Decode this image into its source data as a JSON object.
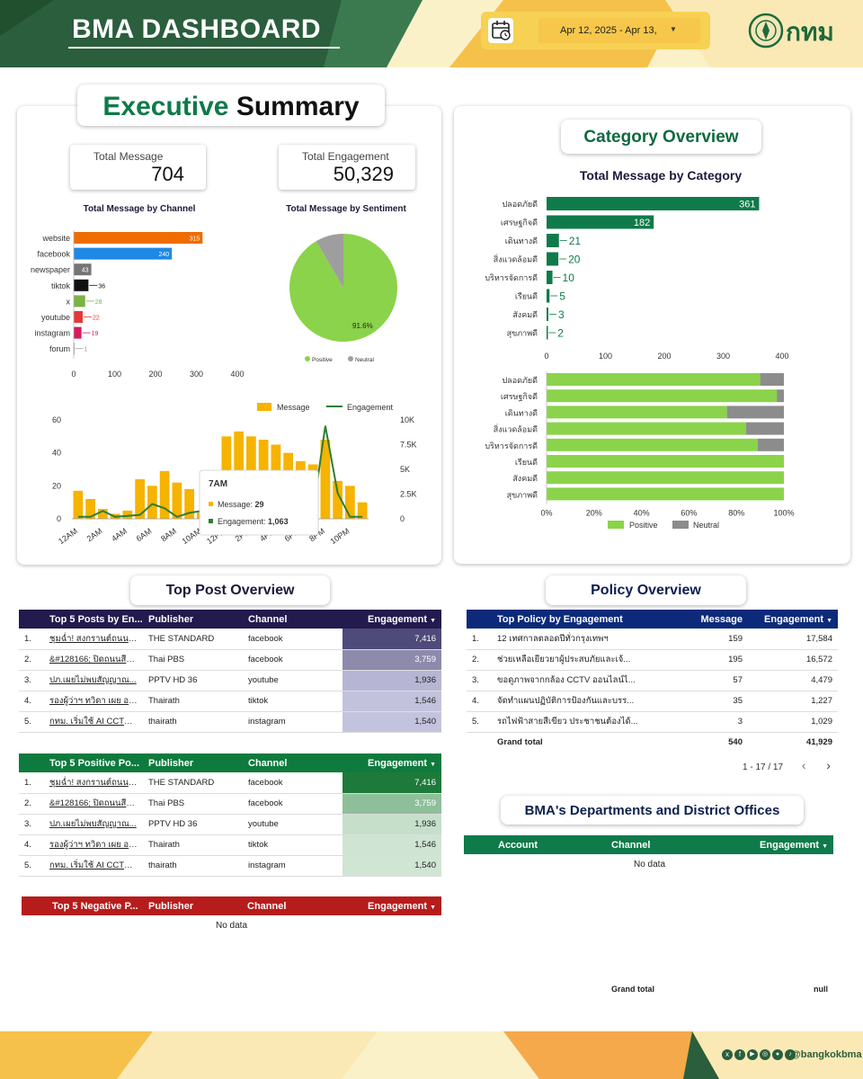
{
  "header": {
    "title": "BMA DASHBOARD",
    "date_range": "Apr 12, 2025 - Apr 13,",
    "logo_text": "กทม",
    "colors": {
      "dark_green": "#2a5e3c",
      "yellow": "#f7d154",
      "cream": "#fbf1c8",
      "orange": "#f6a94a"
    }
  },
  "executive": {
    "title_a": "Executive",
    "title_b": "Summary",
    "total_message_label": "Total Message",
    "total_message_value": "704",
    "total_engagement_label": "Total Engagement",
    "total_engagement_value": "50,329"
  },
  "channel_chart": {
    "title": "Total Message by Channel",
    "categories": [
      "website",
      "facebook",
      "newspaper",
      "tiktok",
      "x",
      "youtube",
      "instagram",
      "forum"
    ],
    "values": [
      315,
      240,
      43,
      36,
      28,
      22,
      19,
      1
    ],
    "value_labels": [
      "315",
      "240",
      "43",
      "36",
      "28",
      "22",
      "19",
      "1"
    ],
    "colors": [
      "#ef6c00",
      "#1e88e5",
      "#757575",
      "#111111",
      "#7cb342",
      "#e53935",
      "#d81b60",
      "#9e9e9e"
    ],
    "xticks": [
      "0",
      "100",
      "200",
      "300",
      "400"
    ],
    "xmax": 400
  },
  "sentiment_chart": {
    "title": "Total Message by Sentiment",
    "slices": [
      {
        "name": "Positive",
        "value": 91.6,
        "color": "#8bd34a"
      },
      {
        "name": "Neutral",
        "value": 8.4,
        "color": "#9e9e9e"
      }
    ],
    "label": "91.6%",
    "legend": [
      "Positive",
      "Neutral"
    ]
  },
  "hourly_chart": {
    "legend": [
      "Message",
      "Engagement"
    ],
    "x": [
      "12AM",
      "1AM",
      "2AM",
      "3AM",
      "4AM",
      "5AM",
      "6AM",
      "7AM",
      "8AM",
      "9AM",
      "10AM",
      "11AM",
      "12PM",
      "1PM",
      "2PM",
      "3PM",
      "4PM",
      "5PM",
      "6PM",
      "7PM",
      "8PM",
      "9PM",
      "10PM",
      "11PM"
    ],
    "xticks": [
      "12AM",
      "2AM",
      "4AM",
      "6AM",
      "8AM",
      "10AM",
      "12PM",
      "2PM",
      "4PM",
      "6PM",
      "8PM",
      "10PM"
    ],
    "messages": [
      17,
      12,
      6,
      3,
      5,
      24,
      20,
      29,
      22,
      18,
      4,
      0,
      50,
      53,
      50,
      48,
      45,
      40,
      35,
      33,
      48,
      23,
      20,
      10
    ],
    "engagement": [
      200,
      200,
      800,
      200,
      300,
      400,
      1500,
      1063,
      200,
      600,
      800,
      1200,
      400,
      2000,
      1500,
      1200,
      1400,
      3500,
      1000,
      700,
      9400,
      2600,
      200,
      200
    ],
    "y_left_ticks": [
      "0",
      "20",
      "40",
      "60"
    ],
    "y_right_ticks": [
      "0",
      "2.5K",
      "5K",
      "7.5K",
      "10K"
    ],
    "tooltip": {
      "title": "7AM",
      "message_label": "Message:",
      "message_value": "29",
      "engagement_label": "Engagement:",
      "engagement_value": "1,063"
    },
    "colors": {
      "bar": "#f6b300",
      "line": "#2e7d32"
    }
  },
  "category": {
    "title": "Category Overview",
    "chart_title": "Total Message by Category",
    "categories": [
      "ปลอดภัยดี",
      "เศรษฐกิจดี",
      "เดินทางดี",
      "สิ่งแวดล้อมดี",
      "บริหารจัดการดี",
      "เรียนดี",
      "สังคมดี",
      "สุขภาพดี"
    ],
    "values": [
      361,
      182,
      21,
      20,
      10,
      5,
      3,
      2
    ],
    "value_labels": [
      "361",
      "182",
      "21",
      "20",
      "10",
      "5",
      "3",
      "2"
    ],
    "xticks": [
      "0",
      "100",
      "200",
      "300",
      "400"
    ],
    "xmax": 400,
    "color": "#0f7a4a",
    "stacked_positive_pct": [
      90,
      97,
      76,
      84,
      89,
      100,
      100,
      100
    ],
    "stacked_xticks": [
      "0%",
      "20%",
      "40%",
      "60%",
      "80%",
      "100%"
    ],
    "stacked_legend": [
      "Positive",
      "Neutral"
    ],
    "stacked_colors": {
      "positive": "#8bd34a",
      "neutral": "#8c8c8c"
    }
  },
  "top_post": {
    "title": "Top Post Overview",
    "headers": [
      "Top 5 Posts by En...",
      "Publisher",
      "Channel",
      "Engagement"
    ],
    "rows": [
      {
        "n": "1.",
        "post": "ชุมฉ่ำ! สงกรานต์ถนนข้...",
        "publisher": "THE STANDARD",
        "channel": "facebook",
        "eng": "7,416"
      },
      {
        "n": "2.",
        "post": "&#128166; ปิดถนนสีล...",
        "publisher": "Thai PBS",
        "channel": "facebook",
        "eng": "3,759"
      },
      {
        "n": "3.",
        "post": "ปภ.เผยไม่พบสัญญาณ...",
        "publisher": "PPTV HD 36",
        "channel": "youtube",
        "eng": "1,936"
      },
      {
        "n": "4.",
        "post": "รองผู้ว่าฯ ทวิดา เผย อย...",
        "publisher": "Thairath",
        "channel": "tiktok",
        "eng": "1,546"
      },
      {
        "n": "5.",
        "post": "กทม. เริ่มใช้ AI CCTV เ...",
        "publisher": "thairath",
        "channel": "instagram",
        "eng": "1,540"
      }
    ],
    "heat": [
      "#4e4a7a",
      "#8d8aac",
      "#b6b5d3",
      "#c3c2dd",
      "#c4c3de"
    ],
    "header_color": "#231a4e"
  },
  "top_positive": {
    "headers": [
      "Top 5 Positive Po...",
      "Publisher",
      "Channel",
      "Engagement"
    ],
    "rows": [
      {
        "n": "1.",
        "post": "ชุมฉ่ำ! สงกรานต์ถนนข้...",
        "publisher": "THE STANDARD",
        "channel": "facebook",
        "eng": "7,416"
      },
      {
        "n": "2.",
        "post": "&#128166; ปิดถนนสีล...",
        "publisher": "Thai PBS",
        "channel": "facebook",
        "eng": "3,759"
      },
      {
        "n": "3.",
        "post": "ปภ.เผยไม่พบสัญญาณ...",
        "publisher": "PPTV HD 36",
        "channel": "youtube",
        "eng": "1,936"
      },
      {
        "n": "4.",
        "post": "รองผู้ว่าฯ ทวิดา เผย อย...",
        "publisher": "Thairath",
        "channel": "tiktok",
        "eng": "1,546"
      },
      {
        "n": "5.",
        "post": "กทม. เริ่มใช้ AI CCTV เ...",
        "publisher": "thairath",
        "channel": "instagram",
        "eng": "1,540"
      }
    ],
    "heat": [
      "#1e7a3a",
      "#8fbf9a",
      "#c5dfcb",
      "#cfe4d3",
      "#d0e5d4"
    ],
    "header_color": "#0f7a3e"
  },
  "top_negative": {
    "headers": [
      "Top 5 Negative P...",
      "Publisher",
      "Channel",
      "Engagement"
    ],
    "no_data": "No data",
    "header_color": "#b71c1c"
  },
  "policy": {
    "title": "Policy Overview",
    "headers": [
      "Top Policy by Engagement",
      "Message",
      "Engagement"
    ],
    "rows": [
      {
        "n": "1.",
        "policy": "12 เทศกาลตลอดปีทั่วกรุงเทพฯ",
        "message": "159",
        "eng": "17,584"
      },
      {
        "n": "2.",
        "policy": "ช่วยเหลือเยียวยาผู้ประสบภัยและเจ้...",
        "message": "195",
        "eng": "16,572"
      },
      {
        "n": "3.",
        "policy": "ขอดูภาพจากกล้อง CCTV ออนไลน์ไ...",
        "message": "57",
        "eng": "4,479"
      },
      {
        "n": "4.",
        "policy": "จัดทำแผนปฏิบัติการป้องกันและบรร...",
        "message": "35",
        "eng": "1,227"
      },
      {
        "n": "5.",
        "policy": "รถไฟฟ้าสายสีเขียว ประชาชนต้องได้...",
        "message": "3",
        "eng": "1,029"
      }
    ],
    "grand_total_label": "Grand total",
    "grand_total_message": "540",
    "grand_total_eng": "41,929",
    "pagination": "1 - 17 / 17",
    "header_color": "#0d2a7a"
  },
  "departments": {
    "title": "BMA's Departments and District Offices",
    "headers": [
      "Account",
      "Channel",
      "Engagement"
    ],
    "no_data": "No data",
    "grand_total_label": "Grand total",
    "grand_total_value": "null",
    "header_color": "#0f7a4a"
  },
  "footer": {
    "handle": "@bangkokbma",
    "social_icons": [
      "x-icon",
      "facebook-icon",
      "youtube-icon",
      "instagram-icon",
      "line-icon",
      "tiktok-icon"
    ]
  }
}
